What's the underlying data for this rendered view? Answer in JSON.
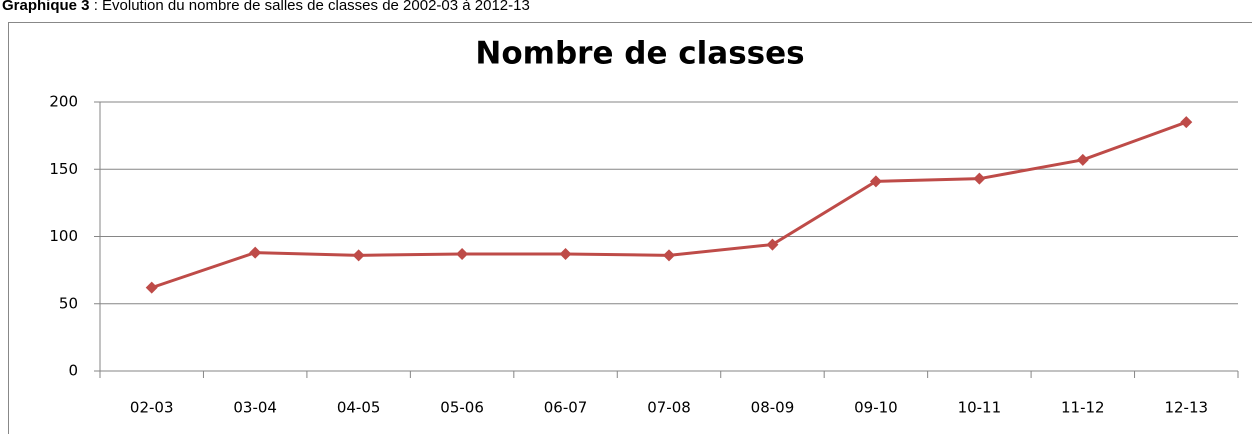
{
  "caption": {
    "label": "Graphique 3",
    "text": " : Evolution du nombre de salles de classes de 2002-03 à 2012-13"
  },
  "chart_data": {
    "type": "line",
    "title": "Nombre de classes",
    "categories": [
      "02-03",
      "03-04",
      "04-05",
      "05-06",
      "06-07",
      "07-08",
      "08-09",
      "09-10",
      "10-11",
      "11-12",
      "12-13"
    ],
    "series": [
      {
        "name": "Nombre de classes",
        "color": "#be4b48",
        "values": [
          62,
          88,
          86,
          87,
          87,
          86,
          94,
          141,
          143,
          157,
          185
        ]
      }
    ],
    "ylim": [
      0,
      200
    ],
    "yticks": [
      0,
      50,
      100,
      150,
      200
    ],
    "grid": true
  }
}
